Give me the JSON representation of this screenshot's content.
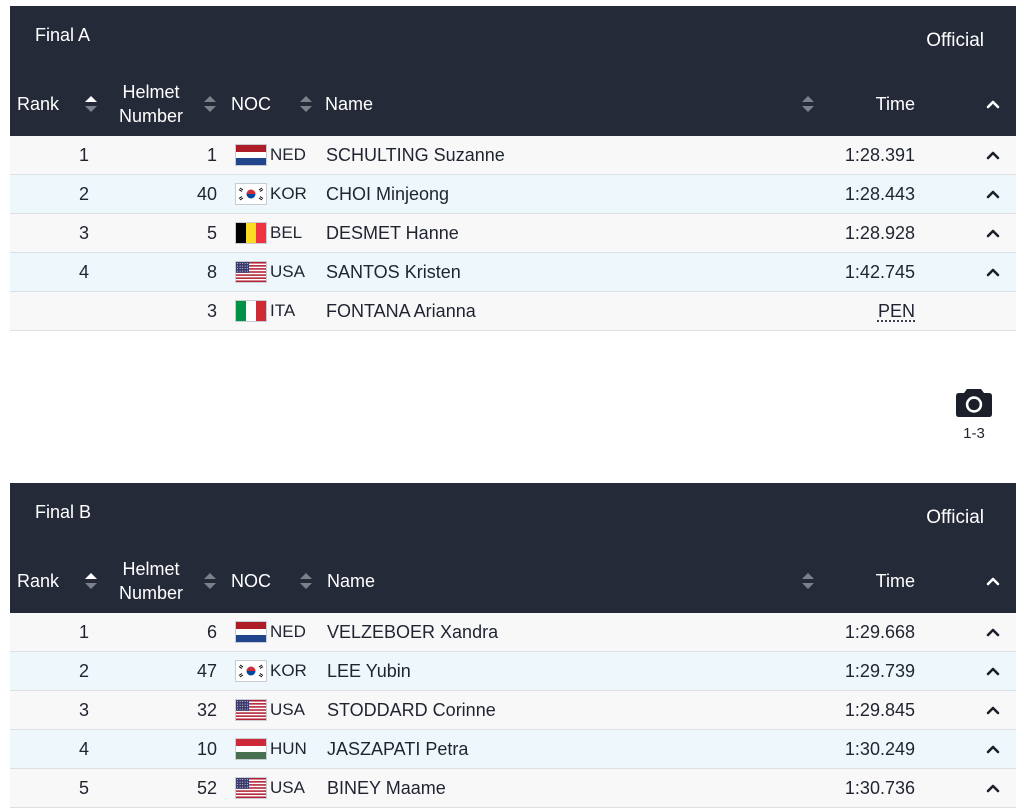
{
  "columns": {
    "rank": "Rank",
    "helmet_line1": "Helmet",
    "helmet_line2": "Number",
    "noc": "NOC",
    "name": "Name",
    "time": "Time"
  },
  "sections": [
    {
      "title": "Final A",
      "status": "Official",
      "rows": [
        {
          "rank": "1",
          "helmet": "1",
          "flag": "ned",
          "noc": "NED",
          "name": "SCHULTING Suzanne",
          "time": "1:28.391",
          "expand_icon": "chevron-up-icon"
        },
        {
          "rank": "2",
          "helmet": "40",
          "flag": "kor",
          "noc": "KOR",
          "name": "CHOI Minjeong",
          "time": "1:28.443",
          "expand_icon": "chevron-up-icon"
        },
        {
          "rank": "3",
          "helmet": "5",
          "flag": "bel",
          "noc": "BEL",
          "name": "DESMET Hanne",
          "time": "1:28.928",
          "expand_icon": "chevron-up-icon"
        },
        {
          "rank": "4",
          "helmet": "8",
          "flag": "usa",
          "noc": "USA",
          "name": "SANTOS Kristen",
          "time": "1:42.745",
          "expand_icon": "chevron-up-icon"
        },
        {
          "rank": "",
          "helmet": "3",
          "flag": "ita",
          "noc": "ITA",
          "name": "FONTANA Arianna",
          "time": "PEN",
          "expand_icon": ""
        }
      ]
    },
    {
      "title": "Final B",
      "status": "Official",
      "rows": [
        {
          "rank": "1",
          "helmet": "6",
          "flag": "ned",
          "noc": "NED",
          "name": "VELZEBOER Xandra",
          "time": "1:29.668",
          "expand_icon": "chevron-up-icon"
        },
        {
          "rank": "2",
          "helmet": "47",
          "flag": "kor",
          "noc": "KOR",
          "name": "LEE Yubin",
          "time": "1:29.739",
          "expand_icon": "chevron-up-icon"
        },
        {
          "rank": "3",
          "helmet": "32",
          "flag": "usa",
          "noc": "USA",
          "name": "STODDARD Corinne",
          "time": "1:29.845",
          "expand_icon": "chevron-up-icon"
        },
        {
          "rank": "4",
          "helmet": "10",
          "flag": "hun",
          "noc": "HUN",
          "name": "JASZAPATI Petra",
          "time": "1:30.249",
          "expand_icon": "chevron-up-icon"
        },
        {
          "rank": "5",
          "helmet": "52",
          "flag": "usa",
          "noc": "USA",
          "name": "BINEY Maame",
          "time": "1:30.736",
          "expand_icon": "chevron-up-icon"
        }
      ]
    }
  ],
  "photo_finish": {
    "icon": "camera-icon",
    "label": "1-3"
  },
  "colors": {
    "header_bg": "#252a38",
    "row_odd": "#f8f8f8",
    "row_even": "#eef7fc"
  }
}
